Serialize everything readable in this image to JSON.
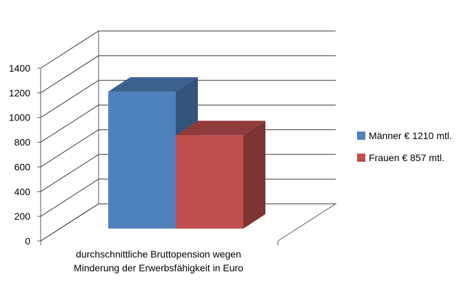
{
  "chart_data": {
    "type": "bar",
    "categories": [
      "durchschnittliche Bruttopension wegen Minderung der Erwerbsfähigkeit in Euro"
    ],
    "category_label_lines": [
      "durchschnittliche Bruttopension wegen",
      "Minderung der Erwerbsfähigkeit in Euro"
    ],
    "series": [
      {
        "name": "Männer € 1210 mtl.",
        "values": [
          1210
        ],
        "color": "#4f81bd"
      },
      {
        "name": "Frauen € 857 mtl.",
        "values": [
          857
        ],
        "color": "#c0504d"
      }
    ],
    "yticks": [
      "0",
      "200",
      "400",
      "600",
      "800",
      "1000",
      "1200",
      "1400"
    ],
    "ylim": [
      0,
      1400
    ],
    "grid": true,
    "legend": "right",
    "three_d": true
  }
}
